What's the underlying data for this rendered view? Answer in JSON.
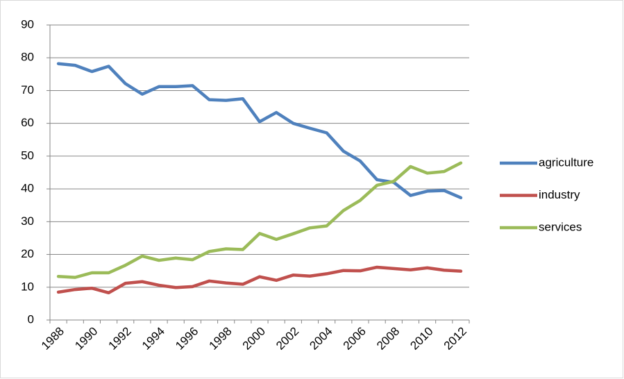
{
  "chart_data": {
    "type": "line",
    "categories": [
      "1988",
      null,
      "1990",
      null,
      "1992",
      null,
      "1994",
      null,
      "1996",
      null,
      "1998",
      null,
      "2000",
      null,
      "2002",
      null,
      "2004",
      null,
      "2006",
      null,
      "2008",
      null,
      "2010",
      null,
      "2012"
    ],
    "series": [
      {
        "name": "agriculture",
        "color": "#4f81bd",
        "values": [
          78.2,
          77.7,
          75.8,
          77.4,
          72.1,
          68.9,
          71.2,
          71.2,
          71.5,
          67.2,
          67.0,
          67.5,
          60.5,
          63.3,
          60.0,
          58.5,
          57.1,
          51.5,
          48.5,
          42.8,
          42.0,
          38.0,
          39.3,
          39.5,
          37.3
        ]
      },
      {
        "name": "industry",
        "color": "#c0504d",
        "values": [
          8.5,
          9.3,
          9.7,
          8.3,
          11.2,
          11.7,
          10.6,
          9.9,
          10.2,
          11.9,
          11.3,
          10.9,
          13.2,
          12.1,
          13.7,
          13.4,
          14.1,
          15.1,
          15.0,
          16.1,
          15.7,
          15.3,
          15.9,
          15.2,
          14.9
        ]
      },
      {
        "name": "services",
        "color": "#9bbb59",
        "values": [
          13.3,
          13.0,
          14.4,
          14.4,
          16.7,
          19.5,
          18.2,
          18.9,
          18.4,
          20.9,
          21.7,
          21.5,
          26.4,
          24.6,
          26.3,
          28.1,
          28.7,
          33.4,
          36.5,
          41.1,
          42.3,
          46.8,
          44.8,
          45.3,
          47.9
        ]
      }
    ],
    "ylim": [
      0,
      90
    ],
    "yticks": [
      0,
      10,
      20,
      30,
      40,
      50,
      60,
      70,
      80,
      90
    ],
    "grid": true,
    "legend": "right"
  }
}
